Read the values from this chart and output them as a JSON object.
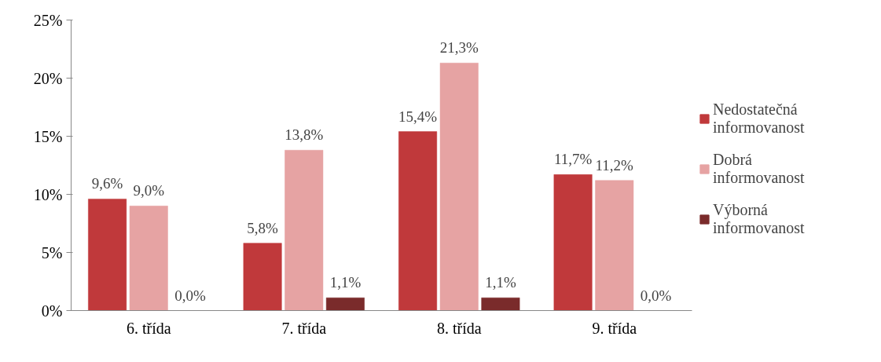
{
  "chart_data": {
    "type": "bar",
    "categories": [
      "6. třída",
      "7. třída",
      "8. třída",
      "9. třída"
    ],
    "series": [
      {
        "name": "Nedostatečná informovanost",
        "color": "#c0393b",
        "values": [
          9.6,
          5.8,
          15.4,
          11.7
        ],
        "value_labels": [
          "9,6%",
          "5,8%",
          "15,4%",
          "11,7%"
        ]
      },
      {
        "name": "Dobrá informovanost",
        "color": "#e6a3a3",
        "values": [
          9.0,
          13.8,
          21.3,
          11.2
        ],
        "value_labels": [
          "9,0%",
          "13,8%",
          "21,3%",
          "11,2%"
        ]
      },
      {
        "name": "Výborná informovanost",
        "color": "#7a2b2b",
        "values": [
          0.0,
          1.1,
          1.1,
          0.0
        ],
        "value_labels": [
          "0,0%",
          "1,1%",
          "1,1%",
          "0,0%"
        ]
      }
    ],
    "ylim": [
      0,
      25
    ],
    "yticks": [
      {
        "value": 0,
        "label": "0%"
      },
      {
        "value": 5,
        "label": "5%"
      },
      {
        "value": 10,
        "label": "10%"
      },
      {
        "value": 15,
        "label": "15%"
      },
      {
        "value": 20,
        "label": "20%"
      },
      {
        "value": 25,
        "label": "25%"
      }
    ],
    "grid": false,
    "legend": "right"
  }
}
